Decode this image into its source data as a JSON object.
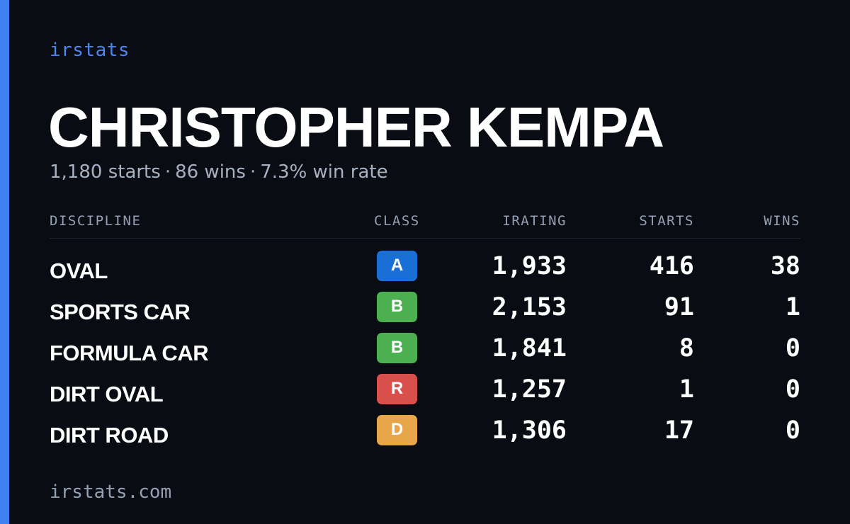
{
  "brand": "irstats",
  "driver": {
    "name": "CHRISTOPHER KEMPA"
  },
  "summary": {
    "starts": "1,180 starts",
    "wins": "86 wins",
    "win_rate": "7.3% win rate",
    "separator": "·"
  },
  "table": {
    "headers": {
      "discipline": "DISCIPLINE",
      "class": "CLASS",
      "irating": "IRATING",
      "starts": "STARTS",
      "wins": "WINS"
    },
    "rows": [
      {
        "discipline": "OVAL",
        "class": "A",
        "class_color": "#1a6fd6",
        "irating": "1,933",
        "starts": "416",
        "wins": "38"
      },
      {
        "discipline": "SPORTS CAR",
        "class": "B",
        "class_color": "#4caf50",
        "irating": "2,153",
        "starts": "91",
        "wins": "1"
      },
      {
        "discipline": "FORMULA CAR",
        "class": "B",
        "class_color": "#4caf50",
        "irating": "1,841",
        "starts": "8",
        "wins": "0"
      },
      {
        "discipline": "DIRT OVAL",
        "class": "R",
        "class_color": "#d94f4b",
        "irating": "1,257",
        "starts": "1",
        "wins": "0"
      },
      {
        "discipline": "DIRT ROAD",
        "class": "D",
        "class_color": "#e8a64a",
        "irating": "1,306",
        "starts": "17",
        "wins": "0"
      }
    ]
  },
  "footer": "irstats.com",
  "colors": {
    "background": "#0a0c13",
    "accent": "#3f7fef",
    "brand_text": "#4a86f0",
    "muted_text": "#94a0b4"
  }
}
